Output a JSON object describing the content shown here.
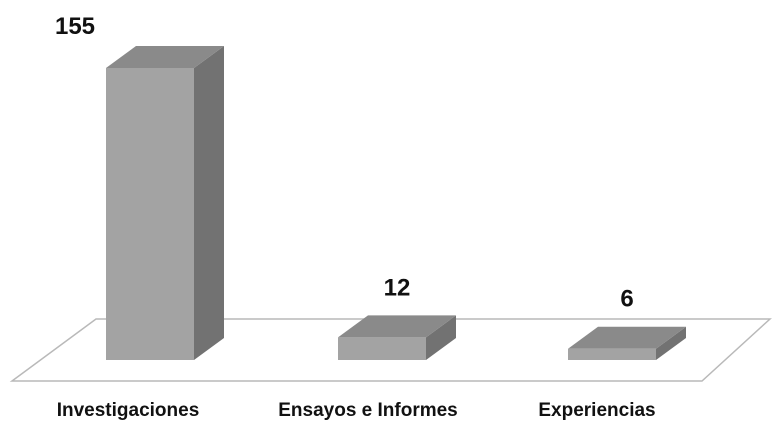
{
  "chart_data": {
    "type": "bar",
    "style": "3d-column",
    "categories": [
      "Investigaciones",
      "Ensayos e Informes",
      "Experiencias"
    ],
    "values": [
      155,
      12,
      6
    ],
    "data_labels": [
      "155",
      "12",
      "6"
    ],
    "title": "",
    "xlabel": "",
    "ylabel": "",
    "ylim": [
      0,
      155
    ],
    "grid": false,
    "legend": "none",
    "colors": {
      "bar_front": "#a3a3a3",
      "bar_side": "#727272",
      "bar_top": "#8a8a8a",
      "floor_fill": "#ffffff",
      "floor_stroke": "#b9b9b9",
      "text": "#111111"
    }
  }
}
